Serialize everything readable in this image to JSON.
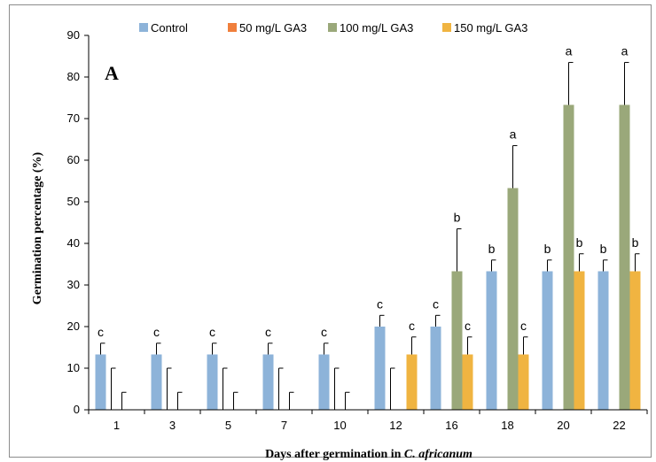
{
  "chart_data": {
    "type": "bar",
    "panel_label": "A",
    "title": "",
    "xlabel_main": "Days after germination in ",
    "xlabel_italic": "C. africanum",
    "ylabel": "Germination percentage (%)",
    "ylim": [
      0,
      90
    ],
    "yticks": [
      0,
      10,
      20,
      30,
      40,
      50,
      60,
      70,
      80,
      90
    ],
    "grid": false,
    "legend_position": "top",
    "categories": [
      "1",
      "3",
      "5",
      "7",
      "10",
      "12",
      "16",
      "18",
      "20",
      "22"
    ],
    "series": [
      {
        "name": "Control",
        "color": "#8db3d9",
        "values": [
          13.3,
          13.3,
          13.3,
          13.3,
          13.3,
          20,
          20,
          33.3,
          33.3,
          33.3
        ],
        "errors": [
          2.7,
          2.7,
          2.7,
          2.7,
          2.7,
          2.7,
          2.7,
          2.7,
          2.7,
          2.7
        ],
        "letters": [
          "c",
          "c",
          "c",
          "c",
          "c",
          "c",
          "c",
          "b",
          "b",
          "b"
        ]
      },
      {
        "name": "50 mg/L GA3",
        "color": "#f07f3c",
        "values": [
          0,
          0,
          0,
          0,
          0,
          0,
          0,
          0,
          0,
          0
        ],
        "errors": [
          10,
          10,
          10,
          10,
          10,
          10,
          0,
          0,
          0,
          0
        ],
        "letters": [
          "",
          "",
          "",
          "",
          "",
          "",
          "",
          "",
          "",
          ""
        ]
      },
      {
        "name": "100 mg/L GA3",
        "color": "#9aa87a",
        "values": [
          0,
          0,
          0,
          0,
          0,
          0,
          33.3,
          53.3,
          73.3,
          73.3
        ],
        "errors": [
          4.2,
          4.2,
          4.2,
          4.2,
          4.2,
          0,
          10.2,
          10.2,
          10.2,
          10.2
        ],
        "letters": [
          "",
          "",
          "",
          "",
          "",
          "",
          "b",
          "a",
          "a",
          "a"
        ]
      },
      {
        "name": "150 mg/L GA3",
        "color": "#f0b441",
        "values": [
          0,
          0,
          0,
          0,
          0,
          13.3,
          13.3,
          13.3,
          33.3,
          33.3
        ],
        "errors": [
          0,
          0,
          0,
          0,
          0,
          4.2,
          4.2,
          4.2,
          4.2,
          4.2
        ],
        "letters": [
          "",
          "",
          "",
          "",
          "",
          "c",
          "c",
          "c",
          "b",
          "b"
        ]
      }
    ]
  }
}
